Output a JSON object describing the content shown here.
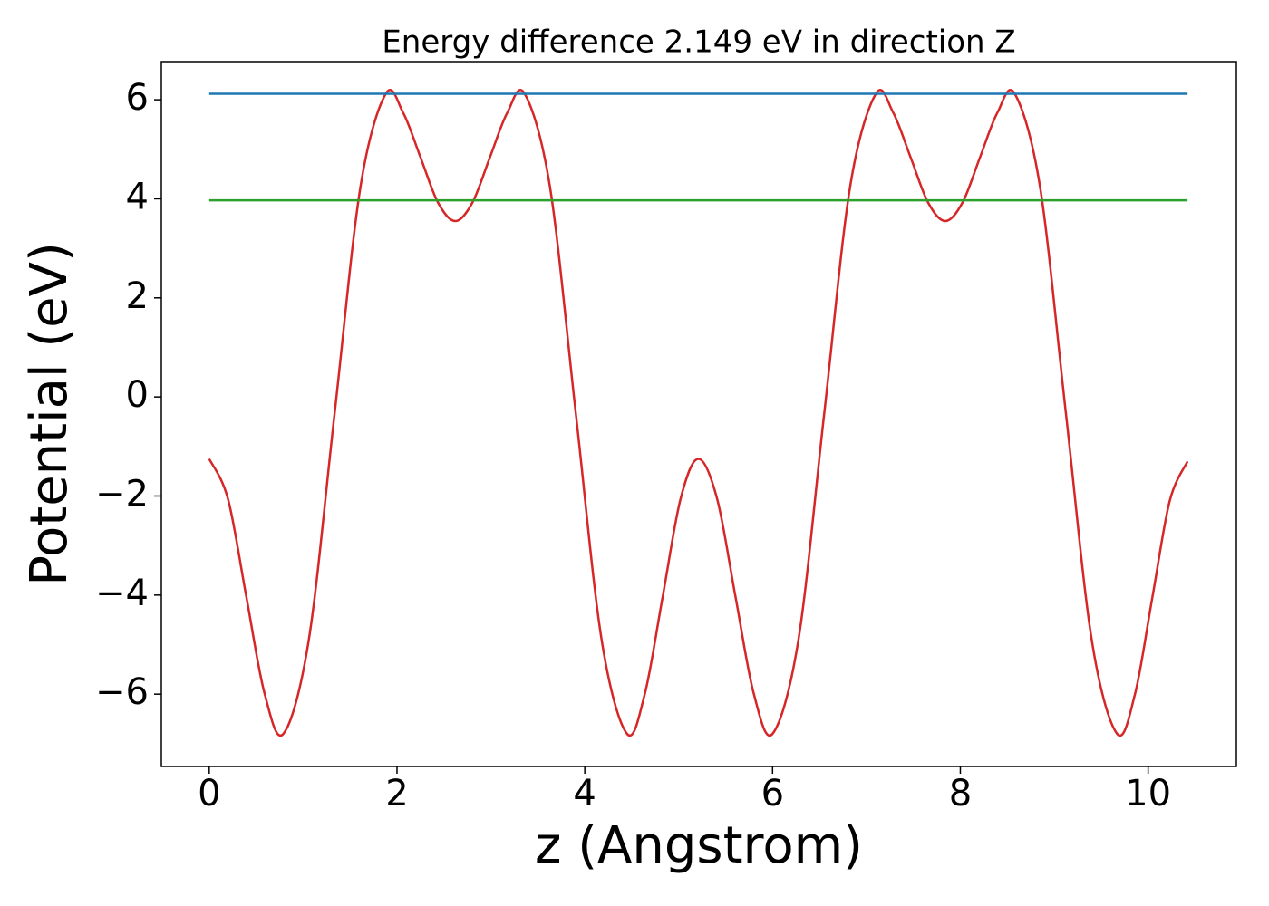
{
  "chart_data": {
    "type": "line",
    "title": "Energy difference 2.149 eV in direction Z",
    "x_label": "z (Angstrom)",
    "y_label": "Potential (eV)",
    "xlim": [
      -0.51,
      10.94
    ],
    "ylim": [
      -7.46,
      6.77
    ],
    "xticks": [
      0,
      2,
      4,
      6,
      8,
      10
    ],
    "yticks": [
      {
        "value": -6,
        "label": "−6"
      },
      {
        "value": -4,
        "label": "−4"
      },
      {
        "value": -2,
        "label": "−2"
      },
      0,
      2,
      4,
      6
    ],
    "series": [
      {
        "color": "#d62728",
        "x": [
          0,
          0.2,
          0.395,
          0.59,
          0.79,
          1.06,
          1.335,
          1.61,
          1.88,
          2.065,
          2.25,
          2.435,
          2.62,
          2.805,
          2.99,
          3.175,
          3.36,
          3.63,
          3.905,
          4.18,
          4.45,
          4.64,
          4.83,
          5.02,
          5.21,
          5.41,
          5.605,
          5.8,
          6.0,
          6.275,
          6.55,
          6.825,
          7.1,
          7.285,
          7.47,
          7.655,
          7.84,
          8.025,
          8.21,
          8.395,
          8.58,
          8.85,
          9.125,
          9.4,
          9.67,
          9.86,
          10.045,
          10.23,
          10.42
        ],
        "values": [
          -1.25,
          -2.06,
          -4.03,
          -5.99,
          -6.8,
          -4.91,
          -0.34,
          4.23,
          6.12,
          5.74,
          4.84,
          3.93,
          3.55,
          3.93,
          4.84,
          5.74,
          6.12,
          4.23,
          -0.34,
          -4.91,
          -6.8,
          -5.99,
          -4.03,
          -2.06,
          -1.25,
          -2.06,
          -4.03,
          -5.99,
          -6.8,
          -4.91,
          -0.34,
          4.23,
          6.12,
          5.74,
          4.84,
          3.93,
          3.55,
          3.93,
          4.84,
          5.74,
          6.12,
          4.23,
          -0.34,
          -4.91,
          -6.8,
          -6.0,
          -4.05,
          -2.1,
          -1.3
        ]
      },
      {
        "color": "#1f77b4",
        "x": [
          0,
          10.42
        ],
        "values": [
          6.12,
          6.12
        ]
      },
      {
        "color": "#2ca02c",
        "x": [
          0,
          10.42
        ],
        "values": [
          3.97,
          3.97
        ]
      }
    ]
  }
}
